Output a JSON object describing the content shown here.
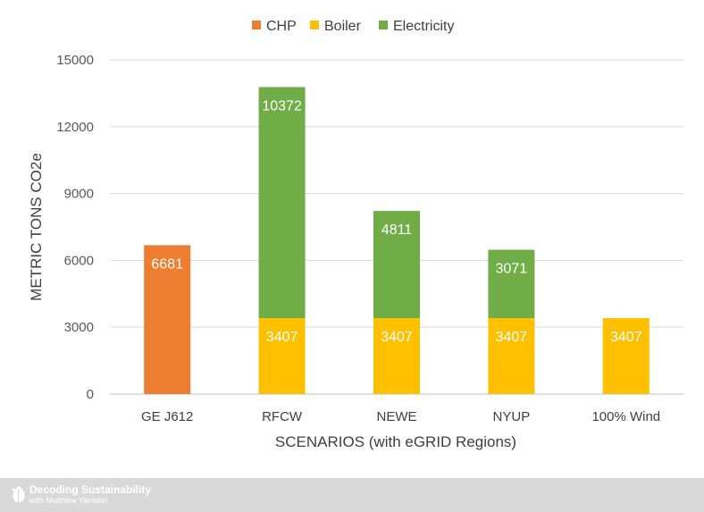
{
  "chart_data": {
    "type": "bar",
    "stacked": true,
    "title": "",
    "xlabel": "SCENARIOS (with eGRID Regions)",
    "ylabel": "METRIC TONS CO2e",
    "ylim": [
      0,
      15000
    ],
    "yticks": [
      0,
      3000,
      6000,
      9000,
      12000,
      15000
    ],
    "grid": true,
    "legend_position": "top-center",
    "categories": [
      "GE J612",
      "RFCW",
      "NEWE",
      "NYUP",
      "100% Wind"
    ],
    "series": [
      {
        "name": "CHP",
        "color": "#ed7d31",
        "values": [
          6681,
          0,
          0,
          0,
          0
        ]
      },
      {
        "name": "Boiler",
        "color": "#ffc000",
        "values": [
          0,
          3407,
          3407,
          3407,
          3407
        ]
      },
      {
        "name": "Electricity",
        "color": "#70ad47",
        "values": [
          0,
          10372,
          4811,
          3071,
          0
        ]
      }
    ]
  },
  "footer": {
    "brand": "Decoding Sustainability",
    "subtitle": "with Matthew Yamatin",
    "logo_icon": "leaf-icon"
  }
}
